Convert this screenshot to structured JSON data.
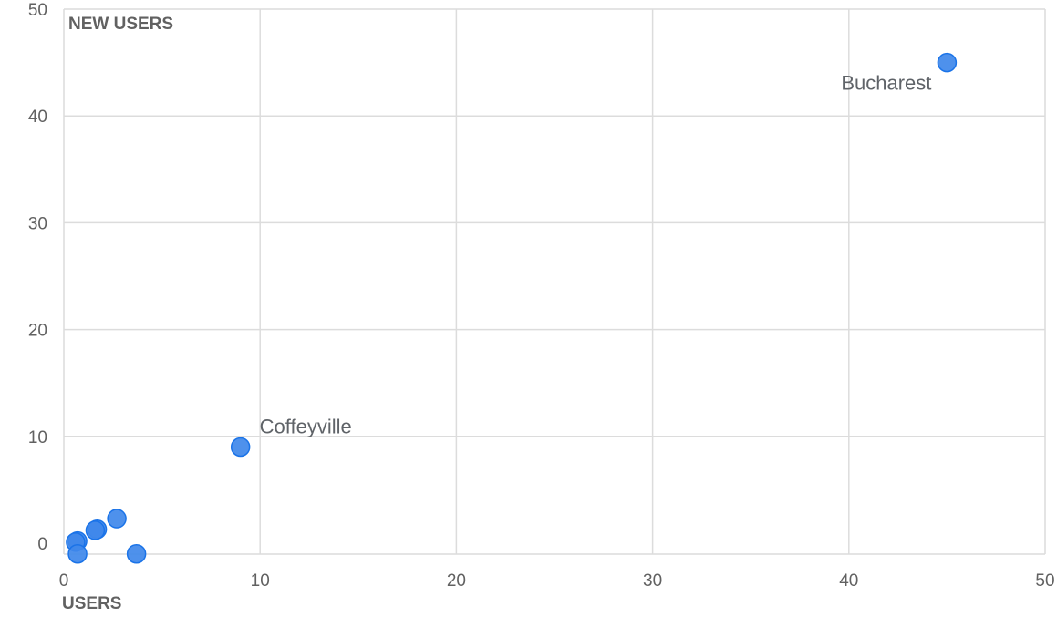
{
  "chart_data": {
    "type": "scatter",
    "xlabel": "USERS",
    "ylabel": "NEW USERS",
    "xlim": [
      0,
      50
    ],
    "ylim": [
      0,
      50
    ],
    "x_ticks": [
      0,
      10,
      20,
      30,
      40,
      50
    ],
    "y_ticks": [
      0,
      10,
      20,
      30,
      40,
      50
    ],
    "grid": true,
    "point_color": "#3f88ea",
    "points": [
      {
        "x": 45,
        "y": 45,
        "label": "Bucharest"
      },
      {
        "x": 9,
        "y": 9,
        "label": "Coffeyville"
      },
      {
        "x": 2.7,
        "y": 2.3,
        "label": ""
      },
      {
        "x": 1.7,
        "y": 1.3,
        "label": ""
      },
      {
        "x": 1.6,
        "y": 1.2,
        "label": ""
      },
      {
        "x": 0.7,
        "y": 0.2,
        "label": ""
      },
      {
        "x": 0.6,
        "y": 0.1,
        "label": ""
      },
      {
        "x": 0.7,
        "y": -1.0,
        "label": ""
      },
      {
        "x": 3.7,
        "y": -1.0,
        "label": ""
      }
    ]
  }
}
